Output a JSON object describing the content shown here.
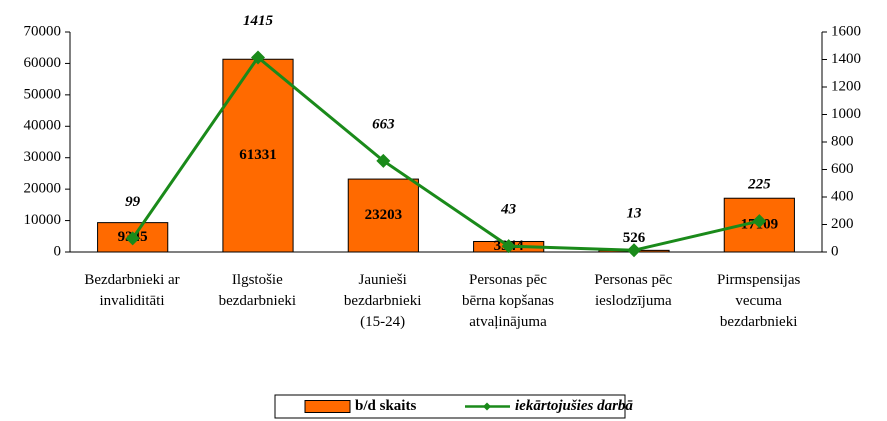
{
  "chart_data": {
    "type": "bar",
    "categories": [
      "Bezdarbnieki ar\ninvaliditāti",
      "Ilgstošie\nbezdarbnieki",
      "Jaunieši\nbezdarbnieki\n(15-24)",
      "Personas pēc\nbērna kopšanas\natvaļinājuma",
      "Personas pēc\nieslodzījuma",
      "Pirmspensijas\nvecuma\nbezdarbnieki"
    ],
    "series": [
      {
        "name": "b/d skaits",
        "type": "bar",
        "color": "#ff6a00",
        "values": [
          9345,
          61331,
          23203,
          3344,
          526,
          17109
        ]
      },
      {
        "name": "iekārtojušies darbā",
        "type": "line",
        "axis": "y2",
        "color": "#1a8a1a",
        "values": [
          99,
          1415,
          663,
          43,
          13,
          225
        ]
      }
    ],
    "ylim": [
      0,
      70000
    ],
    "yticks": [
      0,
      10000,
      20000,
      30000,
      40000,
      50000,
      60000,
      70000
    ],
    "y2lim": [
      0,
      1600
    ],
    "y2ticks": [
      0,
      200,
      400,
      600,
      800,
      1000,
      1200,
      1400,
      1600
    ],
    "legend": "bottom"
  }
}
